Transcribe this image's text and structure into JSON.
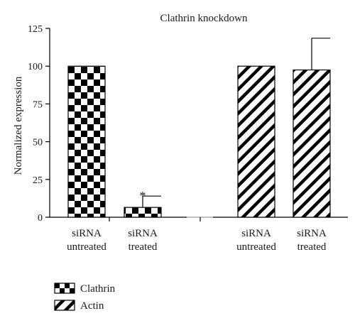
{
  "chart_data": {
    "type": "bar",
    "title": "Clathrin knockdown",
    "xlabel": "",
    "ylabel": "Normalized expression",
    "ylim": [
      0,
      125
    ],
    "yticks": [
      0,
      25,
      50,
      75,
      100,
      125
    ],
    "grid": false,
    "legend_position": "bottom-left",
    "series": [
      {
        "name": "Clathrin",
        "pattern": "checker",
        "categories": [
          "siRNA untreated",
          "siRNA treated"
        ],
        "values": [
          100,
          6.5
        ],
        "error_up": [
          0,
          7.5
        ],
        "annotations": [
          "",
          "*"
        ]
      },
      {
        "name": "Actin",
        "pattern": "diagonal",
        "categories": [
          "siRNA untreated",
          "siRNA treated"
        ],
        "values": [
          100,
          97.5
        ],
        "error_up": [
          0,
          21
        ],
        "annotations": [
          "",
          ""
        ]
      }
    ],
    "category_labels": [
      [
        "siRNA",
        "untreated"
      ],
      [
        "siRNA",
        "treated"
      ],
      [
        "siRNA",
        "untreated"
      ],
      [
        "siRNA",
        "treated"
      ]
    ]
  }
}
